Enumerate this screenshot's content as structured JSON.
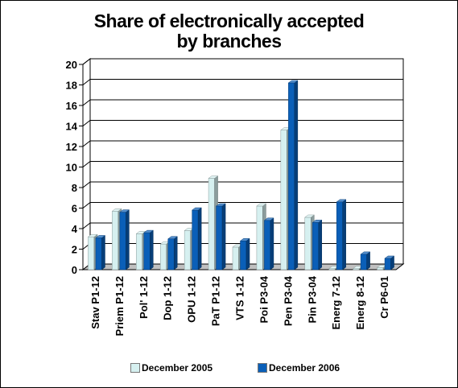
{
  "chart_data": {
    "type": "bar",
    "title": "Share of electronically accepted\nby branches",
    "categories": [
      "Stav P1-12",
      "Priem P1-12",
      "Pol' 1-12",
      "Dop 1-12",
      "OPU 1-12",
      "PaT P1-12",
      "VTS 1-12",
      "Poi P3-04",
      "Pen P3-04",
      "Pin P3-04",
      "Energ 7-12",
      "Energ 8-12",
      "Cr P6-01"
    ],
    "series": [
      {
        "name": "December 2005",
        "color": "#d6f0f0",
        "values": [
          3.2,
          5.7,
          3.5,
          2.5,
          3.8,
          8.9,
          2.2,
          6.2,
          13.6,
          5.1,
          0.1,
          0.1,
          0.2
        ]
      },
      {
        "name": "December 2006",
        "color": "#0a5fb8",
        "values": [
          3.1,
          5.6,
          3.6,
          3.0,
          5.8,
          6.2,
          2.8,
          4.8,
          18.2,
          4.6,
          6.6,
          1.5,
          1.1
        ]
      }
    ],
    "ylim": [
      0,
      20
    ],
    "yticks": [
      0,
      2,
      4,
      6,
      8,
      10,
      12,
      14,
      16,
      18,
      20
    ],
    "grid": true,
    "legend_position": "bottom"
  }
}
